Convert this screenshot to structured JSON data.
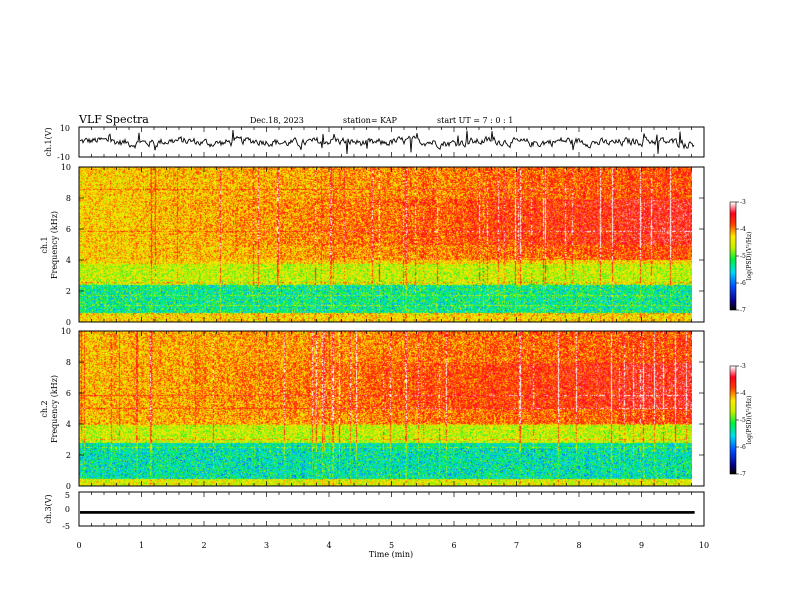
{
  "header": {
    "title": "VLF Spectra",
    "date": "Dec.18, 2023",
    "station": "station= KAP",
    "start": "start  UT =   7 : 0  : 1"
  },
  "chart_data": [
    {
      "type": "line",
      "ylabel": "ch.1(V)",
      "ylim": [
        -10,
        10
      ],
      "yticks": [
        "10",
        "-10"
      ],
      "description_values": "noisy waveform mostly between -3 and 3 V, occasional excursions to about 8 V",
      "amplitude": 3.2,
      "peak": 8
    },
    {
      "type": "heatmap",
      "ylabel_line1": "ch.1",
      "ylabel_line2": "Frequency  (kHz)",
      "ylim": [
        0,
        10
      ],
      "yticks": [
        "0",
        "2",
        "4",
        "6",
        "8",
        "10"
      ],
      "bands": [
        {
          "from": 0,
          "to": 0.6,
          "level": -4.3
        },
        {
          "from": 0.6,
          "to": 2.4,
          "level": -5.3
        },
        {
          "from": 2.4,
          "to": 3.8,
          "level": -4.6
        },
        {
          "from": 3.8,
          "to": 10,
          "level": -4.3
        }
      ],
      "trend": "increasing intensity with time above 4 kHz, strongest 5-8 kHz after 5 min",
      "colorbar": {
        "label": "log(PSD)(V²/Hz)",
        "ticks": [
          "-3",
          "-4",
          "-5",
          "-6",
          "-7"
        ],
        "range": [
          -7,
          -3
        ]
      }
    },
    {
      "type": "heatmap",
      "ylabel_line1": "ch.2",
      "ylabel_line2": "Frequency  (kHz)",
      "ylim": [
        0,
        10
      ],
      "yticks": [
        "0",
        "2",
        "4",
        "6",
        "8",
        "10"
      ],
      "bands": [
        {
          "from": 0,
          "to": 0.5,
          "level": -4.5
        },
        {
          "from": 0.5,
          "to": 2.8,
          "level": -5.4
        },
        {
          "from": 2.8,
          "to": 4.0,
          "level": -4.6
        },
        {
          "from": 4.0,
          "to": 10,
          "level": -4.2
        }
      ],
      "trend": "strong broadband intensity above 4 kHz, increasing after 5 min",
      "colorbar": {
        "label": "log(PSD)(V²/Hz)",
        "ticks": [
          "-3",
          "-4",
          "-5",
          "-6",
          "-7"
        ],
        "range": [
          -7,
          -3
        ]
      }
    },
    {
      "type": "line",
      "ylabel": "ch.3(V)",
      "ylim": [
        -5,
        5
      ],
      "yticks": [
        "5",
        "0",
        "-5"
      ],
      "level": -1,
      "amplitude": 0.4
    }
  ],
  "xaxis": {
    "label": "Time  (min)",
    "xlim": [
      0,
      10
    ],
    "ticks": [
      "0",
      "1",
      "2",
      "3",
      "4",
      "5",
      "6",
      "7",
      "8",
      "9",
      "10"
    ],
    "data_end": 9.85
  }
}
